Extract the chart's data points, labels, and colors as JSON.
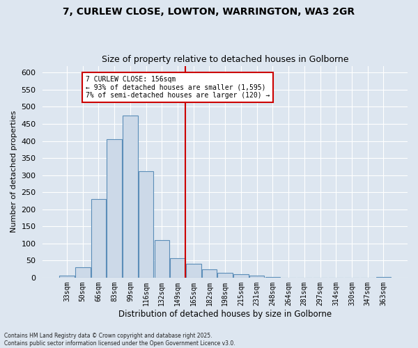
{
  "title": "7, CURLEW CLOSE, LOWTON, WARRINGTON, WA3 2GR",
  "subtitle": "Size of property relative to detached houses in Golborne",
  "xlabel": "Distribution of detached houses by size in Golborne",
  "ylabel": "Number of detached properties",
  "footer": "Contains HM Land Registry data © Crown copyright and database right 2025.\nContains public sector information licensed under the Open Government Licence v3.0.",
  "bins": [
    "33sqm",
    "50sqm",
    "66sqm",
    "83sqm",
    "99sqm",
    "116sqm",
    "132sqm",
    "149sqm",
    "165sqm",
    "182sqm",
    "198sqm",
    "215sqm",
    "231sqm",
    "248sqm",
    "264sqm",
    "281sqm",
    "297sqm",
    "314sqm",
    "330sqm",
    "347sqm",
    "363sqm"
  ],
  "values": [
    5,
    30,
    230,
    405,
    475,
    312,
    110,
    57,
    40,
    25,
    13,
    10,
    5,
    2,
    0,
    0,
    0,
    0,
    0,
    0,
    2
  ],
  "bar_color": "#ccd9e8",
  "bar_edge_color": "#5b8db8",
  "vline_color": "#cc0000",
  "annotation_text": "7 CURLEW CLOSE: 156sqm\n← 93% of detached houses are smaller (1,595)\n7% of semi-detached houses are larger (120) →",
  "annotation_box_color": "#ffffff",
  "annotation_box_edge_color": "#cc0000",
  "background_color": "#dde6f0",
  "grid_color": "#ffffff",
  "ylim": [
    0,
    620
  ],
  "yticks": [
    0,
    50,
    100,
    150,
    200,
    250,
    300,
    350,
    400,
    450,
    500,
    550,
    600
  ]
}
